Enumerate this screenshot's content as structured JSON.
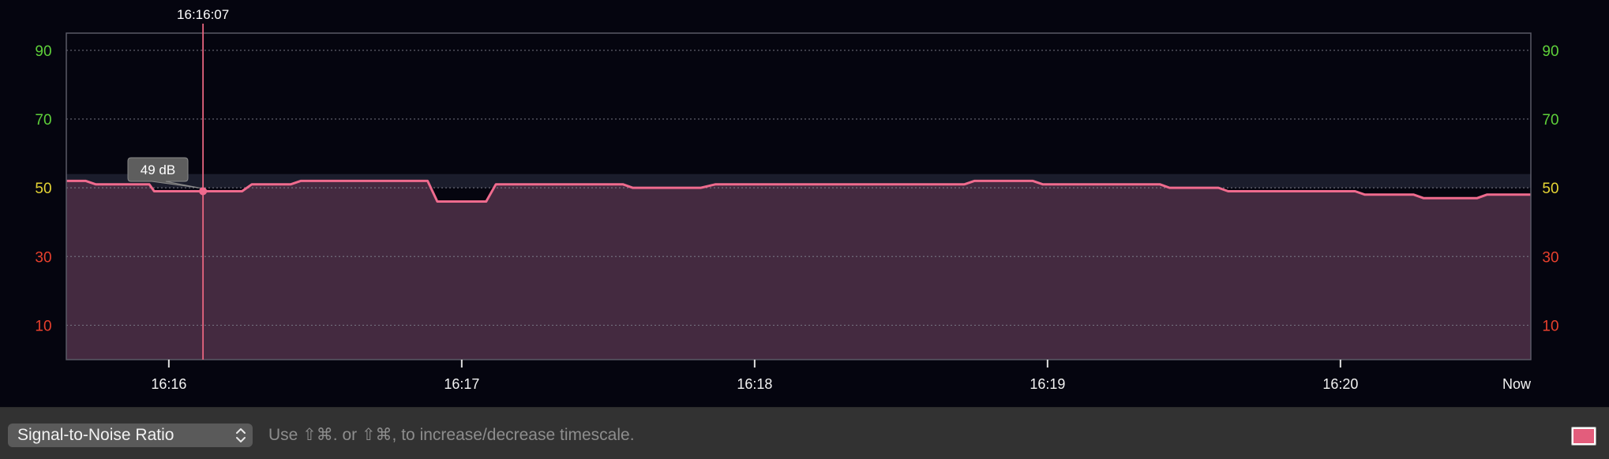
{
  "chart_data": {
    "type": "line",
    "title": "",
    "xlabel": "",
    "ylabel": "",
    "unit": "dB",
    "ylim": [
      0,
      95
    ],
    "yticks": [
      {
        "value": 90,
        "label": "90",
        "color": "#5fd13a"
      },
      {
        "value": 70,
        "label": "70",
        "color": "#5fd13a"
      },
      {
        "value": 50,
        "label": "50",
        "color": "#e6d534"
      },
      {
        "value": 30,
        "label": "30",
        "color": "#e8402d"
      },
      {
        "value": 10,
        "label": "10",
        "color": "#e8402d"
      }
    ],
    "x_unit": "seconds since 16:15:39",
    "xlim": [
      0,
      300
    ],
    "xticks": [
      {
        "t": 21,
        "label": "16:16"
      },
      {
        "t": 81,
        "label": "16:17"
      },
      {
        "t": 141,
        "label": "16:18"
      },
      {
        "t": 201,
        "label": "16:19"
      },
      {
        "t": 261,
        "label": "16:20"
      },
      {
        "t": 300,
        "label": "Now"
      }
    ],
    "grid": true,
    "band": {
      "from": 50,
      "to": 54
    },
    "cursor": {
      "t": 28,
      "time_label": "16:16:07",
      "value": 49,
      "value_label": "49 dB"
    },
    "series": [
      {
        "name": "",
        "color": "#ef6b8e",
        "points": [
          [
            0,
            52
          ],
          [
            4,
            52
          ],
          [
            6,
            51
          ],
          [
            17,
            51
          ],
          [
            18,
            49
          ],
          [
            36,
            49
          ],
          [
            38,
            51
          ],
          [
            46,
            51
          ],
          [
            48,
            52
          ],
          [
            74,
            52
          ],
          [
            76,
            46
          ],
          [
            86,
            46
          ],
          [
            88,
            51
          ],
          [
            114,
            51
          ],
          [
            116,
            50
          ],
          [
            130,
            50
          ],
          [
            133,
            51
          ],
          [
            184,
            51
          ],
          [
            186,
            52
          ],
          [
            198,
            52
          ],
          [
            200,
            51
          ],
          [
            224,
            51
          ],
          [
            226,
            50
          ],
          [
            236,
            50
          ],
          [
            238,
            49
          ],
          [
            264,
            49
          ],
          [
            266,
            48
          ],
          [
            276,
            48
          ],
          [
            278,
            47
          ],
          [
            289,
            47
          ],
          [
            291,
            48
          ],
          [
            300,
            48
          ]
        ]
      }
    ]
  },
  "footer": {
    "metric_label": "Signal-to-Noise Ratio",
    "hint": "Use ⇧⌘. or ⇧⌘, to increase/decrease timescale.",
    "swatch_color": "#e35d7c"
  }
}
